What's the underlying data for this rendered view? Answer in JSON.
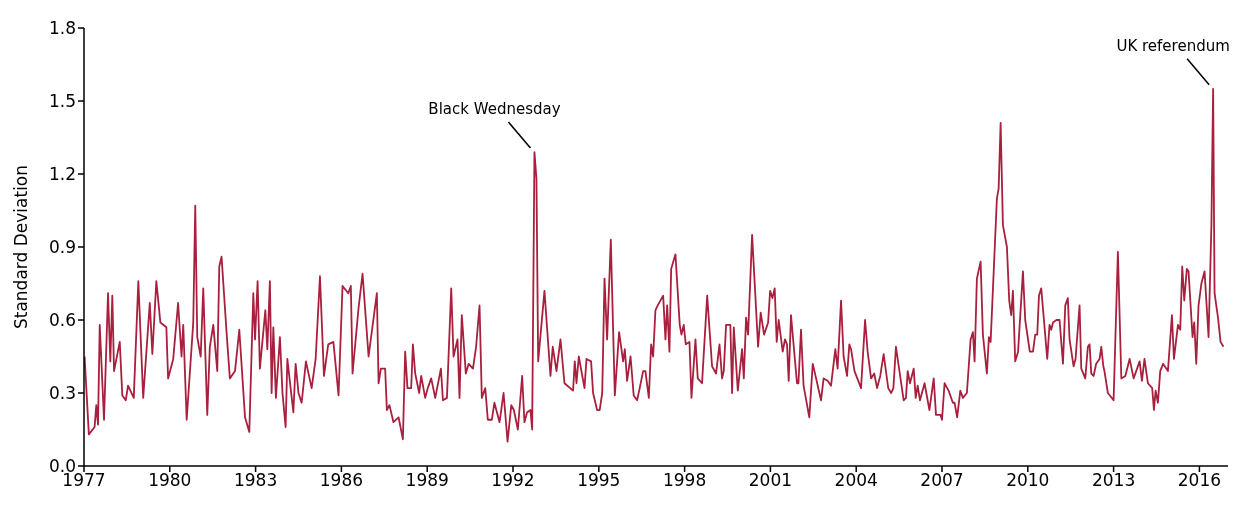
{
  "chart_data": {
    "type": "line",
    "ylabel": "Standard Deviation",
    "color": "#a8203e",
    "line_style": "solid",
    "x": [
      1977.02,
      1977.17,
      1977.37,
      1977.43,
      1977.49,
      1977.55,
      1977.7,
      1977.84,
      1977.92,
      1977.99,
      1978.05,
      1978.25,
      1978.34,
      1978.46,
      1978.54,
      1978.74,
      1978.9,
      1979.07,
      1979.3,
      1979.39,
      1979.53,
      1979.67,
      1979.88,
      1979.94,
      1980.12,
      1980.29,
      1980.41,
      1980.47,
      1980.59,
      1980.82,
      1980.89,
      1980.96,
      1981.08,
      1981.17,
      1981.31,
      1981.4,
      1981.52,
      1981.66,
      1981.73,
      1981.81,
      1981.99,
      1982.1,
      1982.28,
      1982.43,
      1982.63,
      1982.78,
      1982.92,
      1982.98,
      1983.07,
      1983.15,
      1983.34,
      1983.41,
      1983.5,
      1983.56,
      1983.62,
      1983.71,
      1983.85,
      1983.94,
      1984.05,
      1984.11,
      1984.32,
      1984.4,
      1984.5,
      1984.61,
      1984.76,
      1984.96,
      1985.1,
      1985.25,
      1985.39,
      1985.54,
      1985.72,
      1985.9,
      1986.04,
      1986.24,
      1986.33,
      1986.39,
      1986.6,
      1986.74,
      1986.95,
      1987.24,
      1987.3,
      1987.38,
      1987.53,
      1987.59,
      1987.68,
      1987.82,
      1988.0,
      1988.15,
      1988.23,
      1988.31,
      1988.44,
      1988.5,
      1988.58,
      1988.72,
      1988.79,
      1988.93,
      1989.02,
      1989.14,
      1989.28,
      1989.48,
      1989.55,
      1989.69,
      1989.84,
      1989.92,
      1990.06,
      1990.13,
      1990.21,
      1990.35,
      1990.45,
      1990.6,
      1990.71,
      1990.83,
      1990.91,
      1991.03,
      1991.12,
      1991.26,
      1991.35,
      1991.53,
      1991.67,
      1991.81,
      1991.94,
      1992.03,
      1992.17,
      1992.32,
      1992.4,
      1992.49,
      1992.61,
      1992.67,
      1992.75,
      1992.82,
      1992.88,
      1993.1,
      1993.31,
      1993.39,
      1993.52,
      1993.66,
      1993.8,
      1994.1,
      1994.16,
      1994.22,
      1994.3,
      1994.5,
      1994.57,
      1994.73,
      1994.8,
      1994.94,
      1995.03,
      1995.12,
      1995.2,
      1995.29,
      1995.42,
      1995.56,
      1995.71,
      1995.85,
      1995.91,
      1995.99,
      1996.11,
      1996.22,
      1996.34,
      1996.43,
      1996.55,
      1996.63,
      1996.75,
      1996.83,
      1996.9,
      1996.98,
      1997.06,
      1997.25,
      1997.33,
      1997.39,
      1997.47,
      1997.53,
      1997.68,
      1997.83,
      1997.89,
      1997.97,
      1998.04,
      1998.17,
      1998.24,
      1998.38,
      1998.46,
      1998.61,
      1998.79,
      1998.96,
      1999.1,
      1999.22,
      1999.31,
      1999.37,
      1999.45,
      1999.6,
      1999.66,
      1999.72,
      1999.86,
      2000.01,
      2000.07,
      2000.15,
      2000.22,
      2000.36,
      2000.57,
      2000.66,
      2000.78,
      2000.92,
      2000.99,
      2001.07,
      2001.15,
      2001.22,
      2001.29,
      2001.43,
      2001.51,
      2001.58,
      2001.64,
      2001.72,
      2001.93,
      2001.98,
      2002.07,
      2002.16,
      2002.36,
      2002.48,
      2002.54,
      2002.77,
      2002.86,
      2003.0,
      2003.12,
      2003.27,
      2003.35,
      2003.47,
      2003.56,
      2003.68,
      2003.76,
      2003.82,
      2003.94,
      2004.17,
      2004.31,
      2004.4,
      2004.52,
      2004.63,
      2004.73,
      2004.84,
      2004.96,
      2005.12,
      2005.22,
      2005.3,
      2005.39,
      2005.66,
      2005.74,
      2005.8,
      2005.88,
      2006.01,
      2006.08,
      2006.15,
      2006.23,
      2006.39,
      2006.56,
      2006.71,
      2006.79,
      2006.95,
      2007.0,
      2007.09,
      2007.23,
      2007.38,
      2007.44,
      2007.53,
      2007.64,
      2007.73,
      2007.87,
      2008.0,
      2008.08,
      2008.14,
      2008.22,
      2008.35,
      2008.43,
      2008.57,
      2008.64,
      2008.7,
      2008.92,
      2008.98,
      2009.05,
      2009.13,
      2009.27,
      2009.35,
      2009.42,
      2009.48,
      2009.56,
      2009.66,
      2009.83,
      2009.91,
      2010.07,
      2010.18,
      2010.26,
      2010.33,
      2010.39,
      2010.47,
      2010.68,
      2010.76,
      2010.82,
      2010.88,
      2011.0,
      2011.11,
      2011.23,
      2011.31,
      2011.4,
      2011.46,
      2011.6,
      2011.67,
      2011.81,
      2011.87,
      2012.01,
      2012.1,
      2012.16,
      2012.22,
      2012.3,
      2012.39,
      2012.51,
      2012.57,
      2012.64,
      2012.68,
      2012.8,
      2013.0,
      2013.15,
      2013.27,
      2013.41,
      2013.56,
      2013.7,
      2013.91,
      2013.99,
      2014.08,
      2014.2,
      2014.35,
      2014.41,
      2014.47,
      2014.55,
      2014.63,
      2014.73,
      2014.9,
      2015.04,
      2015.11,
      2015.25,
      2015.33,
      2015.4,
      2015.47,
      2015.56,
      2015.62,
      2015.76,
      2015.82,
      2015.89,
      2015.97,
      2016.07,
      2016.18,
      2016.32,
      2016.42,
      2016.48,
      2016.53,
      2016.65,
      2016.74,
      2016.84
    ],
    "values": [
      0.45,
      0.13,
      0.16,
      0.25,
      0.17,
      0.58,
      0.19,
      0.71,
      0.43,
      0.7,
      0.39,
      0.51,
      0.29,
      0.27,
      0.33,
      0.28,
      0.76,
      0.28,
      0.67,
      0.46,
      0.76,
      0.59,
      0.57,
      0.36,
      0.44,
      0.67,
      0.45,
      0.58,
      0.19,
      0.59,
      1.07,
      0.53,
      0.45,
      0.73,
      0.21,
      0.49,
      0.58,
      0.39,
      0.82,
      0.86,
      0.54,
      0.36,
      0.39,
      0.56,
      0.2,
      0.14,
      0.71,
      0.52,
      0.76,
      0.4,
      0.64,
      0.48,
      0.76,
      0.3,
      0.57,
      0.28,
      0.53,
      0.3,
      0.16,
      0.44,
      0.22,
      0.42,
      0.3,
      0.26,
      0.43,
      0.32,
      0.44,
      0.78,
      0.37,
      0.5,
      0.51,
      0.29,
      0.74,
      0.71,
      0.74,
      0.38,
      0.65,
      0.79,
      0.45,
      0.71,
      0.34,
      0.4,
      0.4,
      0.23,
      0.25,
      0.18,
      0.2,
      0.11,
      0.47,
      0.32,
      0.32,
      0.5,
      0.38,
      0.3,
      0.37,
      0.28,
      0.32,
      0.36,
      0.28,
      0.4,
      0.27,
      0.28,
      0.73,
      0.45,
      0.52,
      0.28,
      0.62,
      0.38,
      0.42,
      0.4,
      0.49,
      0.66,
      0.28,
      0.32,
      0.19,
      0.19,
      0.26,
      0.18,
      0.3,
      0.1,
      0.25,
      0.23,
      0.15,
      0.37,
      0.18,
      0.22,
      0.23,
      0.15,
      1.29,
      1.18,
      0.43,
      0.72,
      0.37,
      0.49,
      0.39,
      0.52,
      0.34,
      0.31,
      0.43,
      0.34,
      0.45,
      0.32,
      0.44,
      0.43,
      0.3,
      0.23,
      0.23,
      0.3,
      0.77,
      0.52,
      0.93,
      0.29,
      0.55,
      0.43,
      0.48,
      0.35,
      0.45,
      0.29,
      0.27,
      0.32,
      0.39,
      0.39,
      0.28,
      0.5,
      0.45,
      0.64,
      0.66,
      0.7,
      0.52,
      0.66,
      0.47,
      0.81,
      0.87,
      0.58,
      0.54,
      0.58,
      0.5,
      0.51,
      0.28,
      0.52,
      0.36,
      0.34,
      0.7,
      0.41,
      0.38,
      0.5,
      0.36,
      0.39,
      0.58,
      0.58,
      0.3,
      0.57,
      0.31,
      0.48,
      0.36,
      0.61,
      0.54,
      0.95,
      0.49,
      0.63,
      0.54,
      0.59,
      0.72,
      0.69,
      0.73,
      0.51,
      0.6,
      0.47,
      0.52,
      0.5,
      0.35,
      0.62,
      0.34,
      0.34,
      0.56,
      0.33,
      0.2,
      0.42,
      0.39,
      0.27,
      0.36,
      0.35,
      0.33,
      0.48,
      0.4,
      0.68,
      0.45,
      0.37,
      0.5,
      0.48,
      0.39,
      0.32,
      0.6,
      0.47,
      0.36,
      0.38,
      0.32,
      0.37,
      0.46,
      0.32,
      0.3,
      0.32,
      0.49,
      0.27,
      0.28,
      0.39,
      0.34,
      0.4,
      0.28,
      0.33,
      0.27,
      0.34,
      0.23,
      0.36,
      0.21,
      0.21,
      0.19,
      0.34,
      0.31,
      0.26,
      0.26,
      0.2,
      0.31,
      0.28,
      0.3,
      0.52,
      0.55,
      0.43,
      0.77,
      0.84,
      0.54,
      0.38,
      0.53,
      0.51,
      1.1,
      1.14,
      1.41,
      0.99,
      0.9,
      0.68,
      0.62,
      0.72,
      0.43,
      0.47,
      0.8,
      0.6,
      0.47,
      0.47,
      0.54,
      0.54,
      0.7,
      0.73,
      0.44,
      0.58,
      0.56,
      0.59,
      0.6,
      0.6,
      0.42,
      0.66,
      0.69,
      0.52,
      0.41,
      0.44,
      0.66,
      0.4,
      0.36,
      0.49,
      0.5,
      0.38,
      0.37,
      0.42,
      0.44,
      0.49,
      0.41,
      0.39,
      0.3,
      0.27,
      0.88,
      0.36,
      0.37,
      0.44,
      0.36,
      0.43,
      0.35,
      0.44,
      0.34,
      0.32,
      0.23,
      0.31,
      0.26,
      0.39,
      0.42,
      0.39,
      0.62,
      0.44,
      0.58,
      0.56,
      0.82,
      0.68,
      0.81,
      0.8,
      0.53,
      0.59,
      0.42,
      0.66,
      0.75,
      0.8,
      0.53,
      0.99,
      1.55,
      0.71,
      0.61,
      0.51,
      0.49
    ],
    "xlim": [
      1977,
      2017
    ],
    "xticks": [
      1977,
      1980,
      1983,
      1986,
      1989,
      1992,
      1995,
      1998,
      2001,
      2004,
      2007,
      2010,
      2013,
      2016
    ],
    "ylim": [
      0,
      1.8
    ],
    "yticks": [
      {
        "value": 0,
        "label": "0.0"
      },
      0.3,
      0.6,
      0.9,
      1.2,
      1.5,
      1.8
    ],
    "annotations": [
      {
        "text": "Black Wednesday",
        "x": 1992.75,
        "y": 1.29
      },
      {
        "text": "UK referendum",
        "x": 2016.48,
        "y": 1.55
      }
    ]
  }
}
